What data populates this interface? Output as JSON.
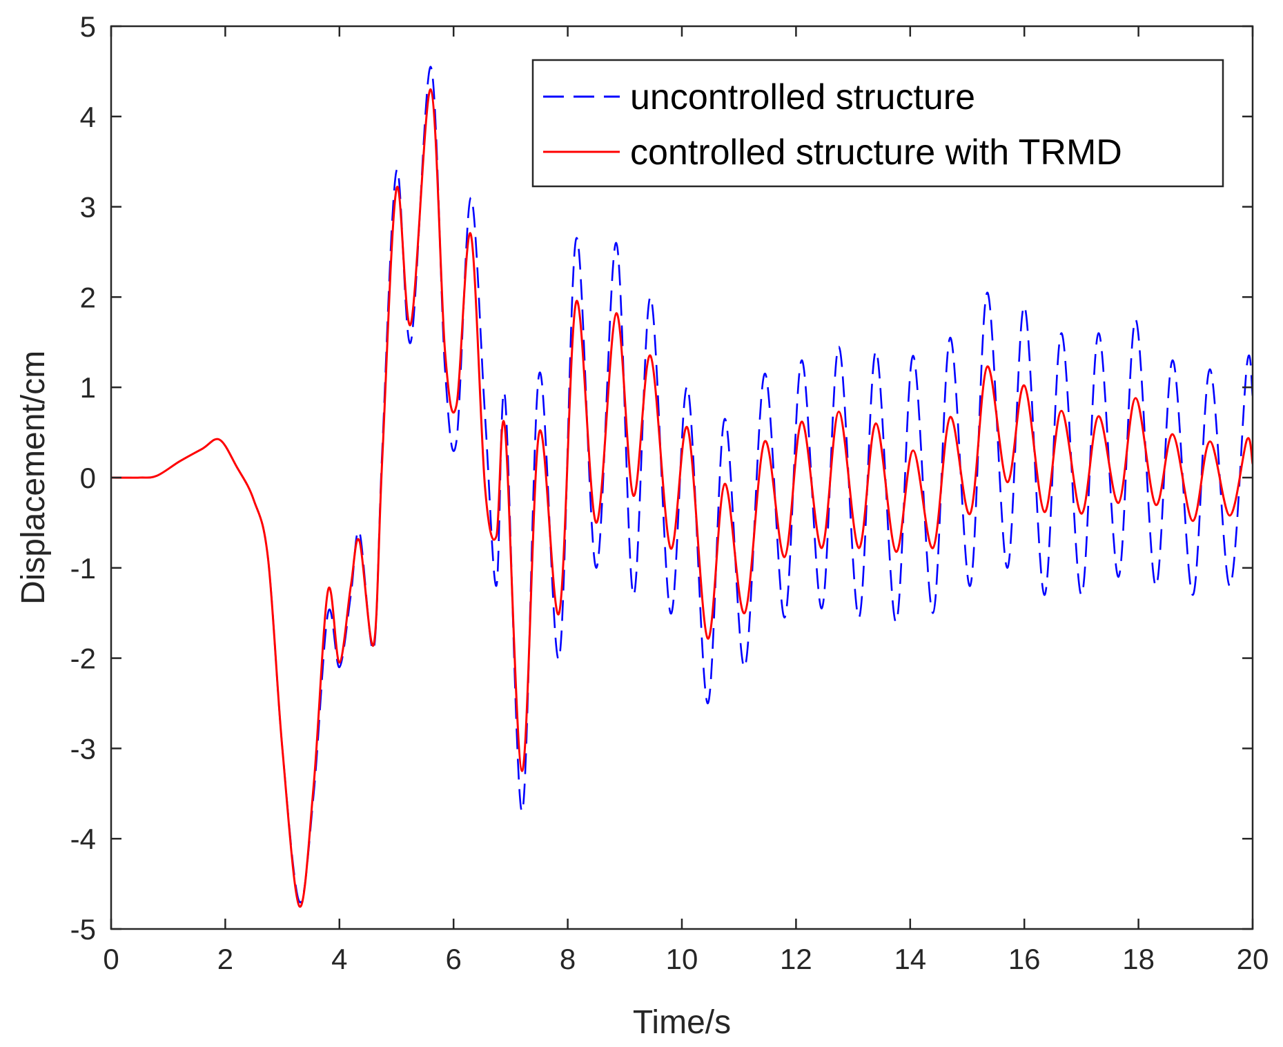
{
  "chart_data": {
    "type": "line",
    "title": "",
    "xlabel": "Time/s",
    "ylabel": "Displacement/cm",
    "xlim": [
      0,
      20
    ],
    "ylim": [
      -5,
      5
    ],
    "xticks": [
      0,
      2,
      4,
      6,
      8,
      10,
      12,
      14,
      16,
      18,
      20
    ],
    "yticks": [
      -5,
      -4,
      -3,
      -2,
      -1,
      0,
      1,
      2,
      3,
      4,
      5
    ],
    "grid": false,
    "legend_position": "top-right",
    "series": [
      {
        "name": "uncontrolled structure",
        "color": "#0000ff",
        "style": "dashed",
        "x": [
          0,
          0.5,
          0.8,
          1.2,
          1.6,
          1.9,
          2.2,
          2.5,
          2.75,
          3.0,
          3.3,
          3.55,
          3.8,
          4.0,
          4.2,
          4.35,
          4.6,
          4.75,
          5.0,
          5.25,
          5.6,
          5.85,
          6.05,
          6.3,
          6.55,
          6.75,
          6.9,
          7.2,
          7.5,
          7.85,
          8.15,
          8.5,
          8.85,
          9.15,
          9.45,
          9.8,
          10.1,
          10.45,
          10.75,
          11.1,
          11.45,
          11.8,
          12.1,
          12.45,
          12.75,
          13.1,
          13.4,
          13.75,
          14.05,
          14.4,
          14.7,
          15.05,
          15.35,
          15.7,
          16.0,
          16.35,
          16.65,
          17.0,
          17.3,
          17.65,
          17.95,
          18.3,
          18.6,
          18.95,
          19.25,
          19.6,
          19.9,
          20.0
        ],
        "y": [
          0,
          0,
          0.02,
          0.18,
          0.32,
          0.42,
          0.12,
          -0.25,
          -0.9,
          -3.0,
          -4.7,
          -3.5,
          -1.5,
          -2.1,
          -1.3,
          -0.6,
          -1.9,
          0.3,
          3.4,
          1.5,
          4.55,
          1.2,
          0.4,
          3.1,
          0.7,
          -1.2,
          0.9,
          -3.7,
          1.15,
          -2.0,
          2.65,
          -1.0,
          2.6,
          -1.3,
          2.0,
          -1.5,
          1.0,
          -2.5,
          0.65,
          -2.1,
          1.15,
          -1.55,
          1.3,
          -1.45,
          1.45,
          -1.55,
          1.4,
          -1.6,
          1.35,
          -1.5,
          1.55,
          -1.2,
          2.05,
          -1.0,
          1.9,
          -1.3,
          1.6,
          -1.3,
          1.6,
          -1.1,
          1.75,
          -1.2,
          1.3,
          -1.3,
          1.2,
          -1.2,
          1.25,
          0.9
        ]
      },
      {
        "name": "controlled structure with TRMD",
        "color": "#ff0000",
        "style": "solid",
        "x": [
          0,
          0.5,
          0.8,
          1.2,
          1.6,
          1.9,
          2.2,
          2.5,
          2.75,
          3.0,
          3.3,
          3.55,
          3.8,
          4.0,
          4.2,
          4.35,
          4.6,
          4.75,
          5.0,
          5.25,
          5.6,
          5.85,
          6.05,
          6.3,
          6.55,
          6.75,
          6.9,
          7.2,
          7.5,
          7.85,
          8.15,
          8.5,
          8.85,
          9.15,
          9.45,
          9.8,
          10.1,
          10.45,
          10.75,
          11.1,
          11.45,
          11.8,
          12.1,
          12.45,
          12.75,
          13.1,
          13.4,
          13.75,
          14.05,
          14.4,
          14.7,
          15.05,
          15.35,
          15.7,
          16.0,
          16.35,
          16.65,
          17.0,
          17.3,
          17.65,
          17.95,
          18.3,
          18.6,
          18.95,
          19.25,
          19.6,
          19.9,
          20.0
        ],
        "y": [
          0,
          0,
          0.02,
          0.18,
          0.32,
          0.42,
          0.12,
          -0.25,
          -0.9,
          -3.0,
          -4.75,
          -3.4,
          -1.25,
          -2.05,
          -1.2,
          -0.7,
          -1.85,
          0.2,
          3.2,
          1.7,
          4.3,
          1.4,
          0.8,
          2.7,
          -0.1,
          -0.65,
          0.55,
          -3.25,
          0.5,
          -1.5,
          1.95,
          -0.5,
          1.82,
          -0.2,
          1.35,
          -0.78,
          0.55,
          -1.78,
          -0.07,
          -1.5,
          0.4,
          -0.88,
          0.62,
          -0.78,
          0.73,
          -0.78,
          0.6,
          -0.82,
          0.3,
          -0.78,
          0.67,
          -0.4,
          1.23,
          -0.05,
          1.02,
          -0.38,
          0.74,
          -0.4,
          0.68,
          -0.28,
          0.88,
          -0.3,
          0.48,
          -0.48,
          0.4,
          -0.42,
          0.42,
          0.15
        ]
      }
    ]
  }
}
